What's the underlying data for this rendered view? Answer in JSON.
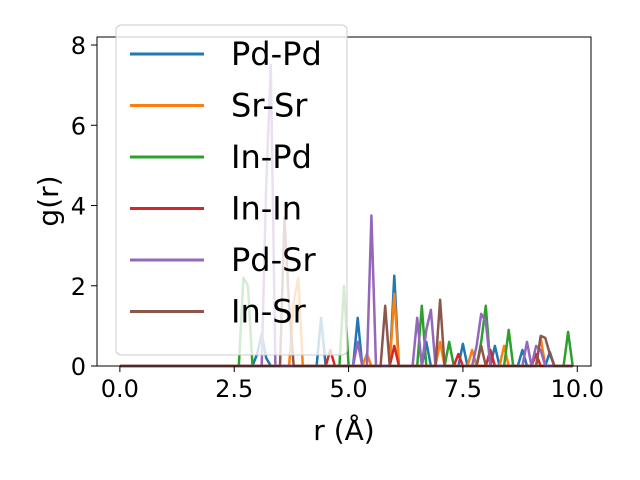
{
  "chart_data": {
    "type": "line",
    "title": "",
    "xlabel": "r (Å)",
    "ylabel": "g(r)",
    "xlim": [
      -0.5,
      10.3
    ],
    "ylim": [
      0,
      8.2
    ],
    "xticks": [
      0.0,
      2.5,
      5.0,
      7.5,
      10.0
    ],
    "xtick_labels": [
      "0.0",
      "2.5",
      "5.0",
      "7.5",
      "10.0"
    ],
    "yticks": [
      0,
      2,
      4,
      6,
      8
    ],
    "ytick_labels": [
      "0",
      "2",
      "4",
      "6",
      "8"
    ],
    "grid": false,
    "legend": "upper-left",
    "series": [
      {
        "name": "Pd-Pd",
        "color": "#1f77b4",
        "x": [
          0,
          2.9,
          3.0,
          3.1,
          3.2,
          3.3,
          3.4,
          4.3,
          4.4,
          4.5,
          5.1,
          5.2,
          5.3,
          5.9,
          6.0,
          6.1,
          6.6,
          6.7,
          6.8,
          7.4,
          7.5,
          7.6,
          8.1,
          8.2,
          8.3,
          8.7,
          8.8,
          8.9,
          9.3,
          9.4,
          9.5,
          9.9
        ],
        "y": [
          0,
          0,
          0.3,
          0.8,
          0.2,
          0,
          0,
          0,
          1.2,
          0,
          0,
          1.2,
          0,
          0,
          2.25,
          0,
          0,
          0.6,
          0,
          0,
          0.55,
          0,
          0,
          0.5,
          0,
          0,
          0.4,
          0,
          0,
          0.35,
          0,
          0
        ]
      },
      {
        "name": "Sr-Sr",
        "color": "#ff7f0e",
        "x": [
          0,
          3.7,
          3.8,
          3.9,
          4.0,
          5.3,
          5.4,
          5.5,
          5.9,
          6.0,
          6.1,
          6.9,
          7.0,
          7.1,
          7.6,
          7.7,
          7.8,
          8.3,
          8.4,
          8.5,
          9.1,
          9.2,
          9.3,
          9.9
        ],
        "y": [
          0,
          0,
          1.6,
          2.2,
          0,
          0,
          0.3,
          0,
          0,
          1.8,
          0,
          0,
          0.6,
          0,
          0,
          0.4,
          0,
          0,
          0.5,
          0,
          0,
          0.7,
          0,
          0
        ]
      },
      {
        "name": "In-Pd",
        "color": "#2ca02c",
        "x": [
          0,
          2.6,
          2.7,
          2.8,
          2.9,
          4.8,
          4.9,
          5.0,
          6.5,
          6.6,
          6.7,
          7.1,
          7.2,
          7.3,
          7.8,
          7.9,
          8.0,
          8.1,
          8.4,
          8.5,
          8.6,
          9.7,
          9.8,
          9.9
        ],
        "y": [
          0,
          0,
          2.2,
          2.0,
          0,
          0,
          2.0,
          0,
          0,
          1.5,
          0,
          0,
          0.6,
          0,
          0,
          0.6,
          1.5,
          0,
          0,
          0.9,
          0,
          0,
          0.85,
          0
        ]
      },
      {
        "name": "In-In",
        "color": "#d62728",
        "x": [
          0,
          4.5,
          4.6,
          4.7,
          5.9,
          6.0,
          6.1,
          7.3,
          7.4,
          7.5,
          8.0,
          8.1,
          8.2,
          9.0,
          9.1,
          9.2,
          9.9
        ],
        "y": [
          0,
          0,
          0.4,
          0,
          0,
          0.5,
          0,
          0,
          0.3,
          0,
          0,
          0.4,
          0,
          0,
          0.3,
          0,
          0
        ]
      },
      {
        "name": "Pd-Sr",
        "color": "#9467bd",
        "x": [
          0,
          3.1,
          3.2,
          3.3,
          3.4,
          5.1,
          5.2,
          5.3,
          5.4,
          5.5,
          5.6,
          6.4,
          6.5,
          6.6,
          6.7,
          6.8,
          6.9,
          7.7,
          7.8,
          7.9,
          8.0,
          8.1,
          8.8,
          8.9,
          9.0,
          9.1,
          9.2,
          9.3,
          9.9
        ],
        "y": [
          0,
          0,
          4.5,
          7.5,
          0,
          0,
          0.6,
          0,
          0,
          3.75,
          0,
          0,
          1.2,
          0,
          0.9,
          1.4,
          0,
          0,
          0.5,
          1.3,
          1.1,
          0,
          0,
          0.6,
          0,
          0.5,
          0.4,
          0,
          0
        ]
      },
      {
        "name": "In-Sr",
        "color": "#8c564b",
        "x": [
          0,
          3.5,
          3.6,
          3.7,
          3.8,
          5.7,
          5.8,
          5.9,
          6.9,
          7.0,
          7.1,
          7.8,
          7.9,
          8.0,
          9.1,
          9.2,
          9.3,
          9.4,
          9.5,
          9.9
        ],
        "y": [
          0,
          0,
          3.7,
          1.5,
          0,
          0,
          1.5,
          0,
          0,
          1.65,
          0,
          0,
          0.5,
          0,
          0,
          0.75,
          0.7,
          0.3,
          0,
          0
        ]
      }
    ]
  }
}
